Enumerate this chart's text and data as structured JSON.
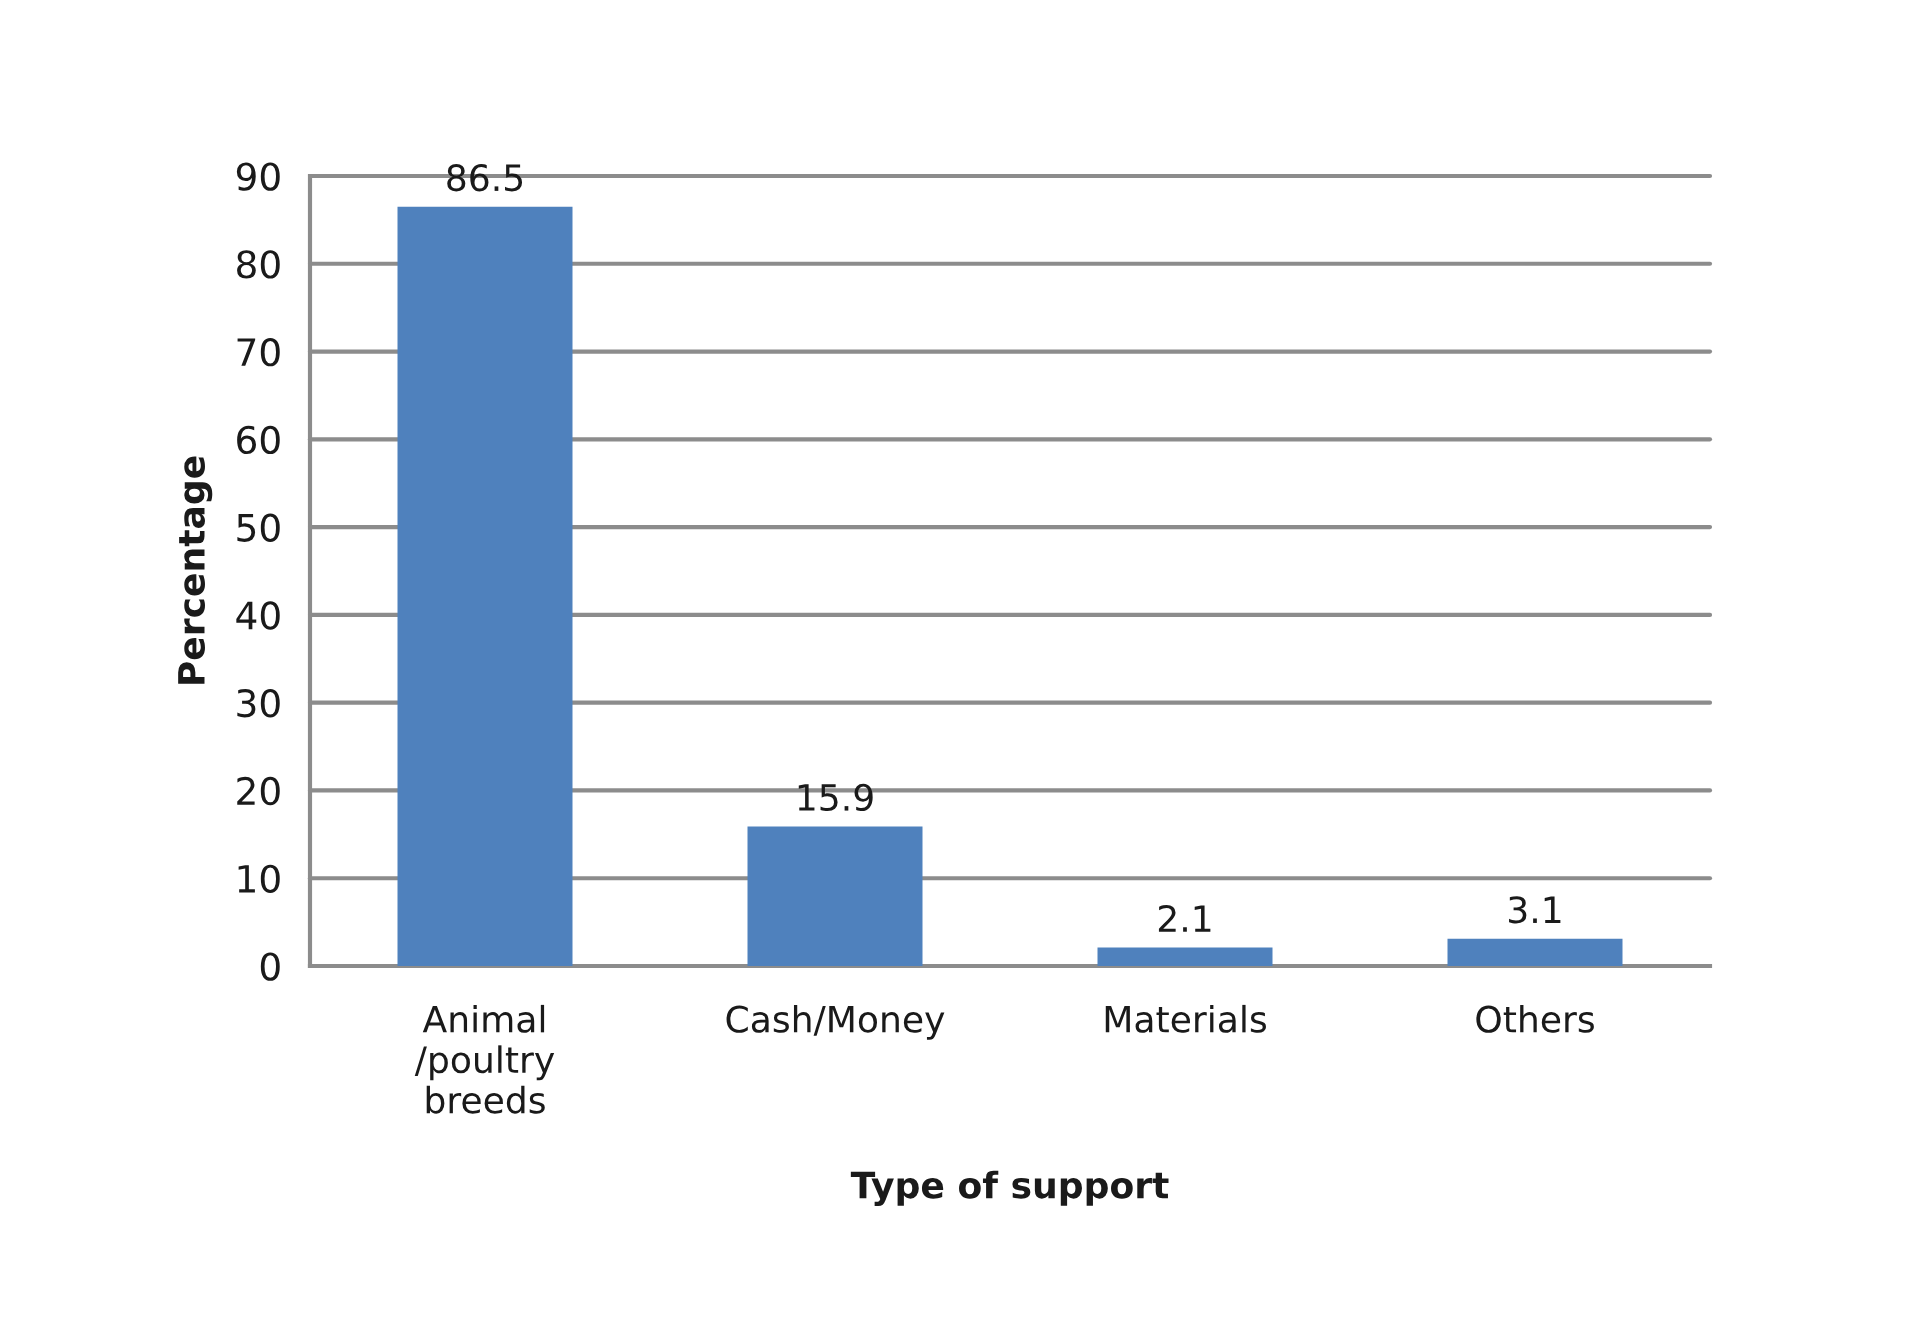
{
  "chart_data": {
    "type": "bar",
    "categories": [
      "Animal /poultry breeds",
      "Cash/Money",
      "Materials",
      "Others"
    ],
    "values": [
      86.5,
      15.9,
      2.1,
      3.1
    ],
    "color": "#4f81bd",
    "xlabel": "Type of support",
    "ylabel": "Percentage",
    "ylim": [
      0,
      90
    ],
    "yticks": [
      0,
      10,
      20,
      30,
      40,
      50,
      60,
      70,
      80,
      90
    ],
    "grid": "y",
    "data_labels": true
  }
}
